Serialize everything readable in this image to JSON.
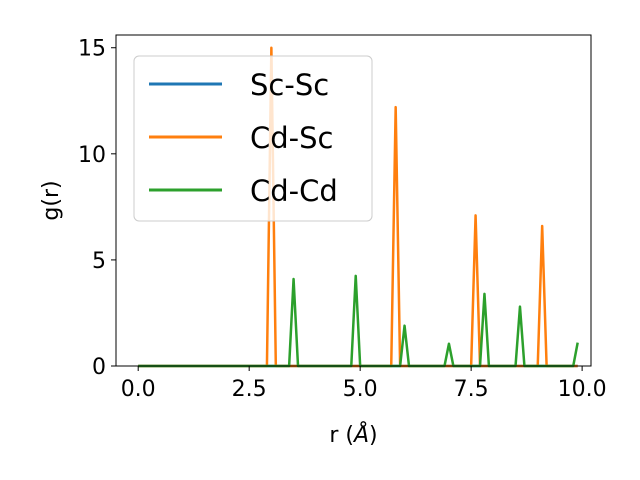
{
  "chart_data": {
    "type": "line",
    "xlabel_text": "r (",
    "xlabel_unit": "Å",
    "xlabel_close": ")",
    "ylabel": "g(r)",
    "xlim": [
      -0.5,
      10.2
    ],
    "ylim": [
      0,
      15.6
    ],
    "xticks": [
      0.0,
      2.5,
      5.0,
      7.5,
      10.0
    ],
    "xtick_labels": [
      "0.0",
      "2.5",
      "5.0",
      "7.5",
      "10.0"
    ],
    "yticks": [
      0,
      5,
      10,
      15
    ],
    "ytick_labels": [
      "0",
      "5",
      "10",
      "15"
    ],
    "grid": false,
    "legend_position": "upper-left",
    "series": [
      {
        "name": "Sc-Sc",
        "color": "#1f77b4",
        "x": [
          0.0,
          9.9
        ],
        "y": [
          0,
          0
        ]
      },
      {
        "name": "Cd-Sc",
        "color": "#ff7f0e",
        "x": [
          0.0,
          2.9,
          3.0,
          3.1,
          5.7,
          5.8,
          5.9,
          7.5,
          7.6,
          7.7,
          9.0,
          9.1,
          9.2,
          9.9
        ],
        "y": [
          0,
          0,
          15.0,
          0,
          0,
          12.2,
          0,
          0,
          7.1,
          0,
          0,
          6.6,
          0,
          0
        ]
      },
      {
        "name": "Cd-Cd",
        "color": "#2ca02c",
        "x": [
          0.0,
          3.4,
          3.5,
          3.6,
          4.8,
          4.9,
          5.0,
          5.9,
          6.0,
          6.1,
          6.9,
          7.0,
          7.1,
          7.7,
          7.8,
          7.9,
          8.5,
          8.6,
          8.7,
          9.8,
          9.9
        ],
        "y": [
          0,
          0,
          4.1,
          0,
          0,
          4.25,
          0,
          0,
          1.9,
          0,
          0,
          1.05,
          0,
          0,
          3.4,
          0,
          0,
          2.8,
          0,
          0,
          1.1
        ]
      }
    ]
  }
}
